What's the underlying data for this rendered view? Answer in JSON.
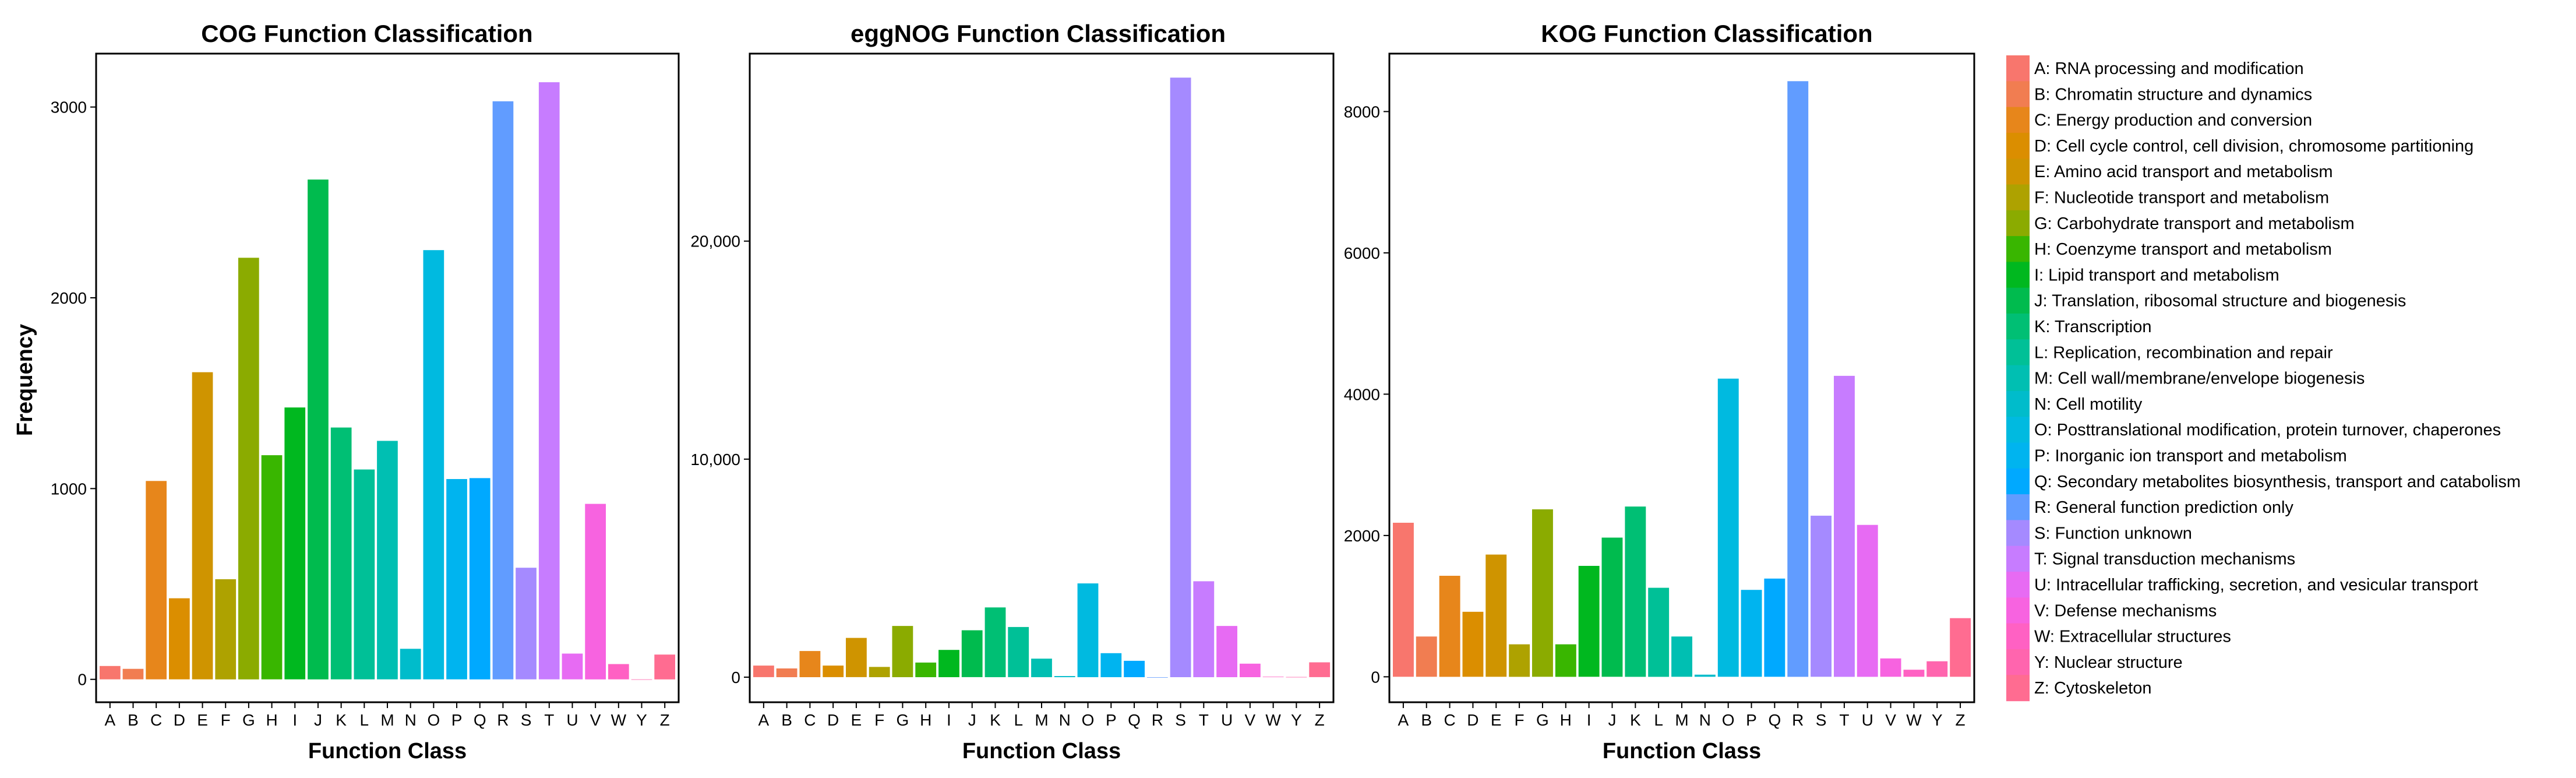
{
  "y_axis_title": "Frequency",
  "chart_data": [
    {
      "type": "bar",
      "title": "COG Function Classification",
      "xlabel": "Function Class",
      "ylabel": "Frequency",
      "categories": [
        "A",
        "B",
        "C",
        "D",
        "E",
        "F",
        "G",
        "H",
        "I",
        "J",
        "K",
        "L",
        "M",
        "N",
        "O",
        "P",
        "Q",
        "R",
        "S",
        "T",
        "U",
        "V",
        "W",
        "Y",
        "Z"
      ],
      "values": [
        70,
        55,
        1040,
        425,
        1610,
        525,
        2210,
        1175,
        1425,
        2620,
        1320,
        1100,
        1250,
        160,
        2250,
        1050,
        1055,
        3030,
        585,
        3130,
        135,
        920,
        80,
        0,
        130
      ],
      "ylim": [
        -120,
        3280
      ],
      "yticks": [
        0,
        1000,
        2000,
        3000
      ],
      "ytick_labels": [
        "0",
        "1000",
        "2000",
        "3000"
      ],
      "grid": false
    },
    {
      "type": "bar",
      "title": "eggNOG Function Classification",
      "xlabel": "Function Class",
      "ylabel": "",
      "categories": [
        "A",
        "B",
        "C",
        "D",
        "E",
        "F",
        "G",
        "H",
        "I",
        "J",
        "K",
        "L",
        "M",
        "N",
        "O",
        "P",
        "Q",
        "R",
        "S",
        "T",
        "U",
        "V",
        "W",
        "Y",
        "Z"
      ],
      "values": [
        530,
        400,
        1200,
        530,
        1800,
        470,
        2350,
        670,
        1250,
        2150,
        3200,
        2300,
        850,
        50,
        4300,
        1100,
        750,
        0,
        27500,
        4400,
        2350,
        620,
        20,
        10,
        680
      ],
      "ylim": [
        -1150,
        28600
      ],
      "yticks": [
        0,
        10000,
        20000
      ],
      "ytick_labels": [
        "0",
        "10,000",
        "20,000"
      ],
      "grid": false
    },
    {
      "type": "bar",
      "title": "KOG Function Classification",
      "xlabel": "Function Class",
      "ylabel": "",
      "categories": [
        "A",
        "B",
        "C",
        "D",
        "E",
        "F",
        "G",
        "H",
        "I",
        "J",
        "K",
        "L",
        "M",
        "N",
        "O",
        "P",
        "Q",
        "R",
        "S",
        "T",
        "U",
        "V",
        "W",
        "Y",
        "Z"
      ],
      "values": [
        2180,
        570,
        1430,
        920,
        1730,
        460,
        2370,
        460,
        1570,
        1970,
        2410,
        1260,
        570,
        30,
        4220,
        1230,
        1390,
        8430,
        2280,
        4260,
        2150,
        260,
        100,
        220,
        830
      ],
      "ylim": [
        -360,
        8820
      ],
      "yticks": [
        0,
        2000,
        4000,
        6000,
        8000
      ],
      "ytick_labels": [
        "0",
        "2000",
        "4000",
        "6000",
        "8000"
      ],
      "grid": false
    }
  ],
  "legend": {
    "position": "right",
    "items": [
      {
        "key": "A",
        "label": "A: RNA processing and modification",
        "color": "#F8766D"
      },
      {
        "key": "B",
        "label": "B: Chromatin structure and dynamics",
        "color": "#F17D51"
      },
      {
        "key": "C",
        "label": "C: Energy production and conversion",
        "color": "#E7861B"
      },
      {
        "key": "D",
        "label": "D: Cell cycle control, cell division, chromosome partitioning",
        "color": "#DB8E00"
      },
      {
        "key": "E",
        "label": "E: Amino acid transport and metabolism",
        "color": "#CF9400"
      },
      {
        "key": "F",
        "label": "F: Nucleotide transport and metabolism",
        "color": "#AEA200"
      },
      {
        "key": "G",
        "label": "G: Carbohydrate transport and metabolism",
        "color": "#8BAB00"
      },
      {
        "key": "H",
        "label": "H: Coenzyme transport and metabolism",
        "color": "#39B600"
      },
      {
        "key": "I",
        "label": "I: Lipid transport and metabolism",
        "color": "#00B81F"
      },
      {
        "key": "J",
        "label": "J: Translation, ribosomal structure and biogenesis",
        "color": "#00BB4E"
      },
      {
        "key": "K",
        "label": "K: Transcription",
        "color": "#00BF74"
      },
      {
        "key": "L",
        "label": "L: Replication, recombination and repair",
        "color": "#00C097"
      },
      {
        "key": "M",
        "label": "M: Cell wall/membrane/envelope biogenesis",
        "color": "#00BFB2"
      },
      {
        "key": "N",
        "label": "N: Cell motility",
        "color": "#00BCCB"
      },
      {
        "key": "O",
        "label": "O: Posttranslational modification, protein turnover, chaperones",
        "color": "#00BAE0"
      },
      {
        "key": "P",
        "label": "P: Inorganic ion transport and metabolism",
        "color": "#00B4EF"
      },
      {
        "key": "Q",
        "label": "Q: Secondary metabolites biosynthesis, transport and catabolism",
        "color": "#00A9FF"
      },
      {
        "key": "R",
        "label": "R: General function prediction only",
        "color": "#619CFF"
      },
      {
        "key": "S",
        "label": "S: Function unknown",
        "color": "#A58AFF"
      },
      {
        "key": "T",
        "label": "T: Signal transduction mechanisms",
        "color": "#C77CFF"
      },
      {
        "key": "U",
        "label": "U: Intracellular trafficking, secretion, and vesicular transport",
        "color": "#E76BF3"
      },
      {
        "key": "V",
        "label": "V: Defense mechanisms",
        "color": "#F763E0"
      },
      {
        "key": "W",
        "label": "W: Extracellular structures",
        "color": "#FF61C3"
      },
      {
        "key": "Y",
        "label": "Y: Nuclear structure",
        "color": "#FF65AE"
      },
      {
        "key": "Z",
        "label": "Z: Cytoskeleton",
        "color": "#FF6C91"
      }
    ]
  }
}
